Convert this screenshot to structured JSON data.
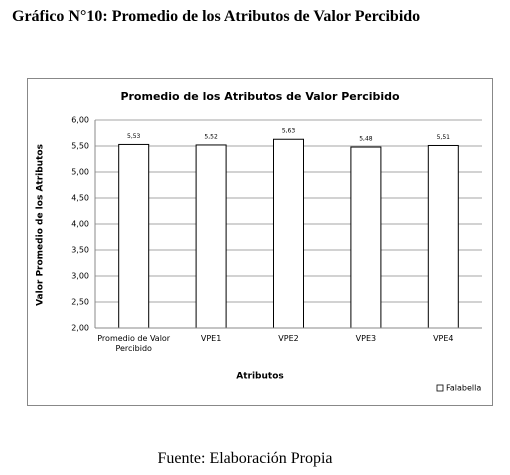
{
  "heading": "Gráfico N°10: Promedio de los Atributos de Valor Percibido",
  "source": "Fuente: Elaboración Propia",
  "chart_data": {
    "type": "bar",
    "title": "Promedio de los Atributos de Valor Percibido",
    "x_label": "Atributos",
    "y_label": "Valor Promedio de los Atributos",
    "categories": [
      "Promedio de Valor Percibido",
      "VPE1",
      "VPE2",
      "VPE3",
      "VPE4"
    ],
    "series": [
      {
        "name": "Falabella",
        "color": "#ffffff",
        "values": [
          5.53,
          5.52,
          5.63,
          5.48,
          5.51
        ],
        "value_labels": [
          "5,53",
          "5,52",
          "5,63",
          "5,48",
          "5,51"
        ]
      }
    ],
    "ylim": [
      2,
      6
    ],
    "yticks": [
      {
        "value": 2,
        "label": "2,00"
      },
      {
        "value": 2.5,
        "label": "2,50"
      },
      {
        "value": 3,
        "label": "3,00"
      },
      {
        "value": 3.5,
        "label": "3,50"
      },
      {
        "value": 4,
        "label": "4,00"
      },
      {
        "value": 4.5,
        "label": "4,50"
      },
      {
        "value": 5,
        "label": "5,00"
      },
      {
        "value": 5.5,
        "label": "5,50"
      },
      {
        "value": 6,
        "label": "6,00"
      }
    ],
    "grid": true,
    "legend": "bottom-right"
  }
}
